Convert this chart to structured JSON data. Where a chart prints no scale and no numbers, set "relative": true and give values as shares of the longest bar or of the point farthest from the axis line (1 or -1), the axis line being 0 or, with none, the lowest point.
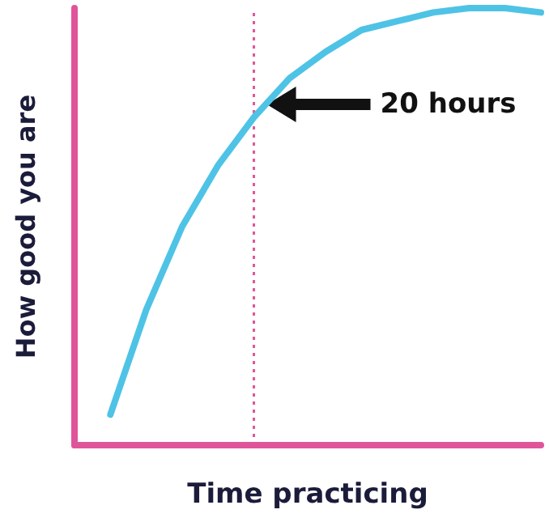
{
  "chart_data": {
    "type": "line",
    "xlabel": "Time practicing",
    "ylabel": "How good you are",
    "relative": true,
    "categories": [
      null,
      null,
      null,
      null,
      null,
      null,
      null,
      null,
      null,
      null,
      null,
      null,
      null,
      null
    ],
    "series": [
      {
        "color": "#4ec3e6",
        "values": [
          null,
          0.07,
          0.31,
          0.5,
          0.64,
          0.75,
          0.84,
          0.9,
          0.95,
          0.97,
          0.99,
          1,
          1,
          0.99
        ]
      }
    ],
    "annotations": [
      "20 hours"
    ]
  }
}
